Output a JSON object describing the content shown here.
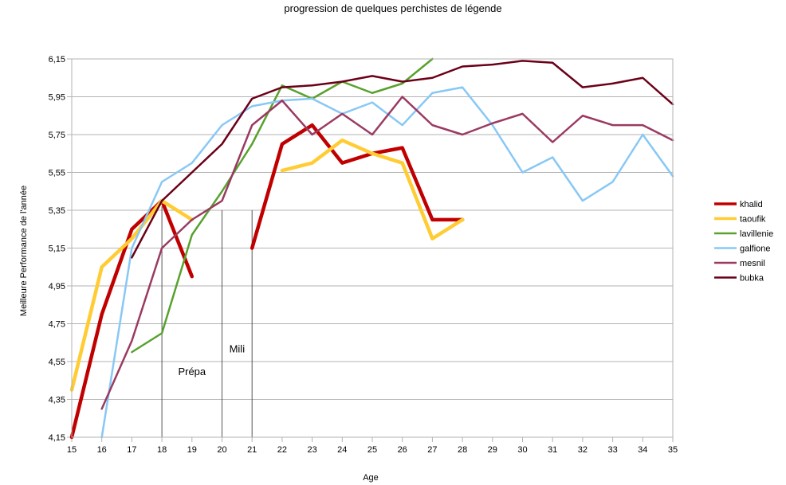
{
  "chart_data": {
    "type": "line",
    "title": "progression de quelques perchistes de légende",
    "xlabel": "Age",
    "ylabel": "Meilleure Performance de l'année",
    "xlim": [
      15,
      35
    ],
    "ylim": [
      4.15,
      6.15
    ],
    "y_ticks": [
      4.15,
      4.35,
      4.55,
      4.75,
      4.95,
      5.15,
      5.35,
      5.55,
      5.75,
      5.95,
      6.15
    ],
    "y_tick_labels": [
      "4,15",
      "4,35",
      "4,55",
      "4,75",
      "4,95",
      "5,15",
      "5,35",
      "5,55",
      "5,75",
      "5,95",
      "6,15"
    ],
    "x_ticks": [
      15,
      16,
      17,
      18,
      19,
      20,
      21,
      22,
      23,
      24,
      25,
      26,
      27,
      28,
      29,
      30,
      31,
      32,
      33,
      34,
      35
    ],
    "grid": true,
    "legend_position": "right",
    "series": [
      {
        "name": "khalid",
        "color": "#c00000",
        "width": 4.5,
        "points": [
          [
            15,
            4.15
          ],
          [
            16,
            4.8
          ],
          [
            17,
            5.25
          ],
          [
            18,
            5.4
          ],
          [
            19,
            5.0
          ],
          null,
          [
            21,
            5.15
          ],
          [
            22,
            5.7
          ],
          [
            23,
            5.8
          ],
          [
            24,
            5.6
          ],
          [
            25,
            5.65
          ],
          [
            26,
            5.68
          ],
          [
            27,
            5.3
          ],
          [
            28,
            5.3
          ]
        ]
      },
      {
        "name": "taoufik",
        "color": "#ffcc33",
        "width": 4.5,
        "points": [
          [
            15,
            4.4
          ],
          [
            16,
            5.05
          ],
          [
            17,
            5.2
          ],
          [
            18,
            5.4
          ],
          [
            19,
            5.3
          ],
          null,
          [
            22,
            5.56
          ],
          [
            23,
            5.6
          ],
          [
            24,
            5.72
          ],
          [
            25,
            5.65
          ],
          [
            26,
            5.6
          ],
          [
            27,
            5.2
          ],
          [
            28,
            5.3
          ]
        ]
      },
      {
        "name": "lavillenie",
        "color": "#58a12e",
        "width": 2.5,
        "points": [
          [
            17,
            4.6
          ],
          [
            18,
            4.7
          ],
          [
            19,
            5.22
          ],
          [
            20,
            5.45
          ],
          [
            21,
            5.7
          ],
          [
            22,
            6.01
          ],
          [
            23,
            5.94
          ],
          [
            24,
            6.03
          ],
          [
            25,
            5.97
          ],
          [
            26,
            6.02
          ],
          [
            27,
            6.15
          ]
        ]
      },
      {
        "name": "galfione",
        "color": "#88c8f5",
        "width": 2.5,
        "points": [
          [
            16,
            4.15
          ],
          [
            17,
            5.15
          ],
          [
            18,
            5.5
          ],
          [
            19,
            5.6
          ],
          [
            20,
            5.8
          ],
          [
            21,
            5.9
          ],
          [
            22,
            5.93
          ],
          [
            23,
            5.94
          ],
          [
            24,
            5.86
          ],
          [
            25,
            5.92
          ],
          [
            26,
            5.8
          ],
          [
            27,
            5.97
          ],
          [
            28,
            6.0
          ],
          [
            29,
            5.8
          ],
          [
            30,
            5.55
          ],
          [
            31,
            5.63
          ],
          [
            32,
            5.4
          ],
          [
            33,
            5.5
          ],
          [
            34,
            5.75
          ],
          [
            35,
            5.53
          ]
        ]
      },
      {
        "name": "mesnil",
        "color": "#9a3a62",
        "width": 2.5,
        "points": [
          [
            16,
            4.3
          ],
          [
            17,
            4.66
          ],
          [
            18,
            5.15
          ],
          [
            19,
            5.3
          ],
          [
            20,
            5.4
          ],
          [
            21,
            5.8
          ],
          [
            22,
            5.93
          ],
          [
            23,
            5.75
          ],
          [
            24,
            5.86
          ],
          [
            25,
            5.75
          ],
          [
            26,
            5.95
          ],
          [
            27,
            5.8
          ],
          [
            28,
            5.75
          ],
          [
            29,
            5.81
          ],
          [
            30,
            5.86
          ],
          [
            31,
            5.71
          ],
          [
            32,
            5.85
          ],
          [
            33,
            5.8
          ],
          [
            34,
            5.8
          ],
          [
            35,
            5.72
          ]
        ]
      },
      {
        "name": "bubka",
        "color": "#6b0018",
        "width": 2.5,
        "points": [
          [
            17,
            5.1
          ],
          [
            18,
            5.4
          ],
          [
            19,
            5.55
          ],
          [
            20,
            5.7
          ],
          [
            21,
            5.94
          ],
          [
            22,
            6.0
          ],
          [
            23,
            6.01
          ],
          [
            24,
            6.03
          ],
          [
            25,
            6.06
          ],
          [
            26,
            6.03
          ],
          [
            27,
            6.05
          ],
          [
            28,
            6.11
          ],
          [
            29,
            6.12
          ],
          [
            30,
            6.14
          ],
          [
            31,
            6.13
          ],
          [
            32,
            6.0
          ],
          [
            33,
            6.02
          ],
          [
            34,
            6.05
          ],
          [
            35,
            5.91
          ]
        ]
      }
    ],
    "annotations": [
      {
        "text": "Prépa",
        "x": 19,
        "y": 4.5
      },
      {
        "text": "Mili",
        "x": 20.5,
        "y": 4.62
      }
    ],
    "markers": [
      {
        "x": 18,
        "y_top": 5.37
      },
      {
        "x": 20,
        "y_top": 5.35
      },
      {
        "x": 21,
        "y_top": 5.35
      }
    ]
  }
}
